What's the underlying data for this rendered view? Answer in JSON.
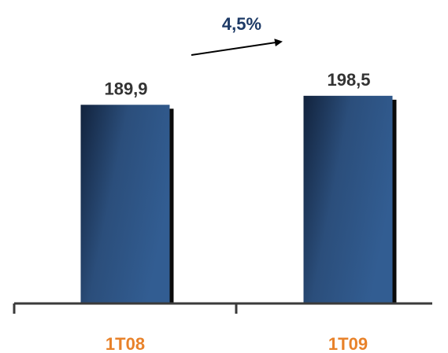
{
  "chart_data": {
    "type": "bar",
    "categories": [
      "1T08",
      "1T09"
    ],
    "values": [
      189.9,
      198.5
    ],
    "value_labels": [
      "189,9",
      "198,5"
    ],
    "annotation": "4,5%",
    "title": "",
    "xlabel": "",
    "ylabel": "",
    "ylim": [
      0,
      260
    ],
    "grid": false,
    "legend": "none"
  },
  "colors": {
    "bar_dark": "#12233d",
    "bar_mid": "#2b4e7b",
    "bar_light": "#325d92",
    "bar_shadow": "#0a0a0a",
    "value_text": "#333333",
    "category_text": "#e8822a",
    "growth_text": "#1d3a66",
    "axis": "#3a3a3a"
  }
}
